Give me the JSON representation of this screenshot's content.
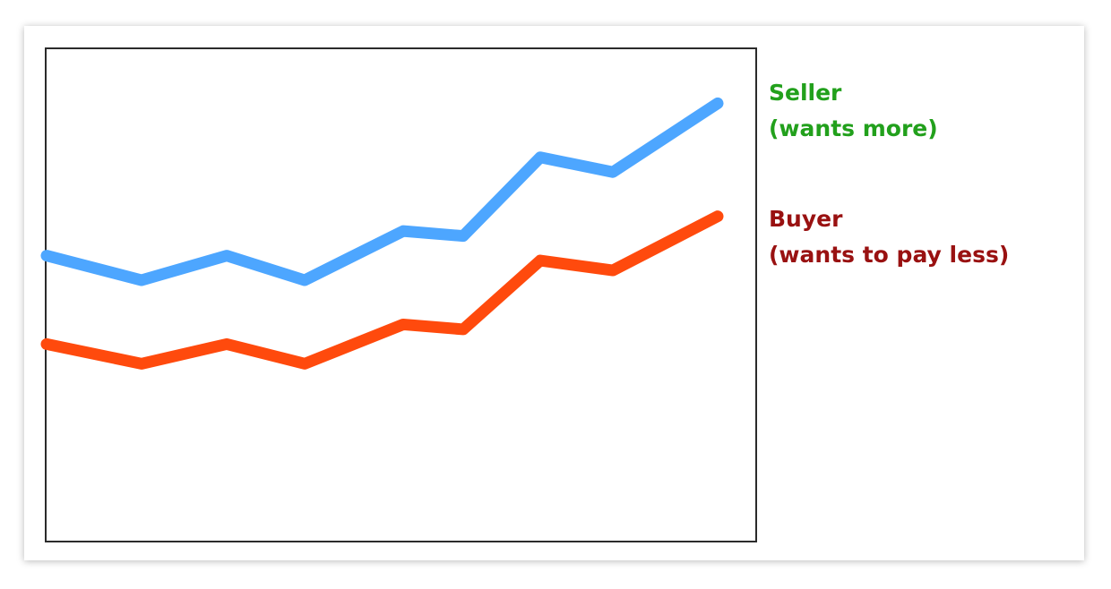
{
  "chart_data": {
    "type": "line",
    "x": [
      0,
      1,
      2,
      3,
      4,
      5,
      6,
      7,
      8
    ],
    "ylim": [
      0,
      10
    ],
    "grid": false,
    "legend_placement": "right",
    "series": [
      {
        "name": "Seller",
        "note": "(wants more)",
        "color": "#4da6ff",
        "label_color": "#22a01c",
        "values": [
          5.8,
          5.3,
          5.8,
          5.3,
          6.3,
          6.2,
          7.8,
          7.5,
          8.9
        ]
      },
      {
        "name": "Buyer",
        "note": "(wants to pay less)",
        "color": "#ff4a0d",
        "label_color": "#991111",
        "values": [
          4.0,
          3.6,
          4.0,
          3.6,
          4.4,
          4.3,
          5.7,
          5.5,
          6.6
        ]
      }
    ]
  }
}
